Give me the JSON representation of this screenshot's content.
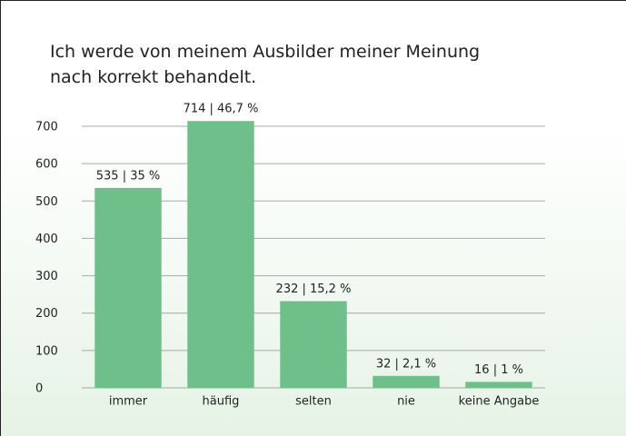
{
  "chart_data": {
    "type": "bar",
    "title": "Ich werde von meinem Ausbilder meiner Meinung nach korrekt behandelt.",
    "categories": [
      "immer",
      "häufig",
      "selten",
      "nie",
      "keine Angabe"
    ],
    "values": [
      535,
      714,
      232,
      32,
      16
    ],
    "value_labels": [
      "535 | 35 %",
      "714 | 46,7 %",
      "232 | 15,2 %",
      "32 | 2,1 %",
      "16 | 1 %"
    ],
    "color": "#6fbf8a",
    "ylim": [
      0,
      700
    ],
    "yticks": [
      0,
      100,
      200,
      300,
      400,
      500,
      600,
      700
    ],
    "grid": true
  }
}
